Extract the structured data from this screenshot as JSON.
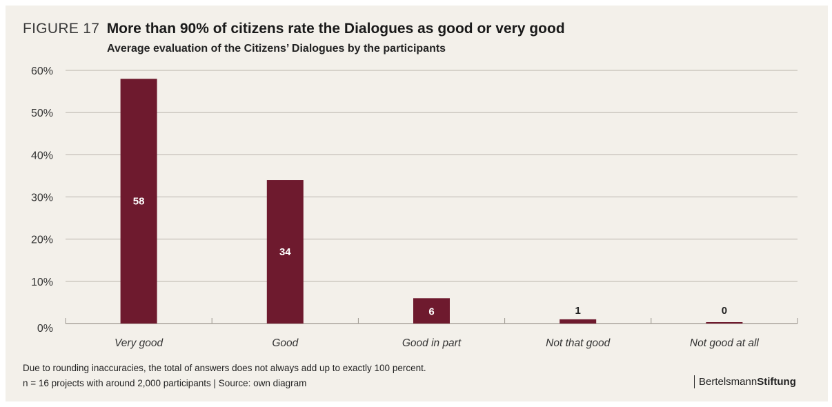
{
  "header": {
    "figure_label": "FIGURE 17",
    "title": "More than 90% of citizens rate the Dialogues as good or very good",
    "subtitle": "Average evaluation of the Citizens’ Dialogues by the participants"
  },
  "footer": {
    "note": "Due to rounding inaccuracies, the total of answers does not always add up to exactly 100 percent.",
    "source": "n = 16 projects with around 2,000 participants  |  Source: own diagram",
    "brand_regular": "Bertelsmann",
    "brand_bold": "Stiftung"
  },
  "colors": {
    "bar": "#6e1a2e",
    "grid": "#b8b3ab",
    "background": "#f3f0ea"
  },
  "chart_data": {
    "type": "bar",
    "title": "More than 90% of citizens rate the Dialogues as good or very good",
    "subtitle": "Average evaluation of the Citizens’ Dialogues by the participants",
    "categories": [
      "Very good",
      "Good",
      "Good in part",
      "Not that good",
      "Not good at all"
    ],
    "values": [
      58,
      34,
      6,
      1,
      0
    ],
    "data_labels": [
      "58",
      "34",
      "6",
      "1",
      "0"
    ],
    "y_ticks": [
      "0%",
      "10%",
      "20%",
      "30%",
      "40%",
      "50%",
      "60%"
    ],
    "ylim": [
      0,
      60
    ],
    "xlabel": "",
    "ylabel": "",
    "grid": true,
    "legend": "none"
  }
}
